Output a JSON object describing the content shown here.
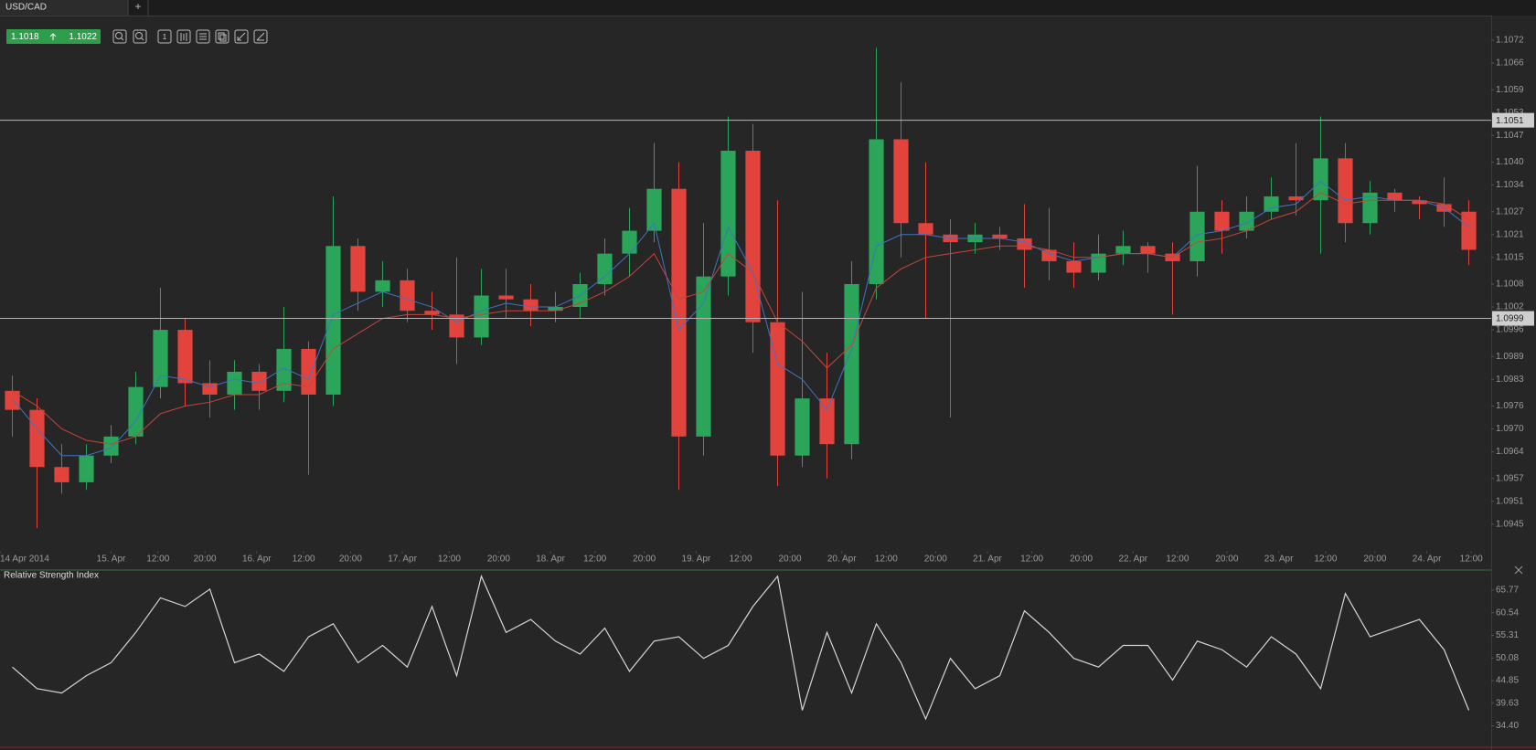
{
  "tab": {
    "title": "USD/CAD",
    "add": "+"
  },
  "toolbar": {
    "bid": "1.1018",
    "ask": "1.1022",
    "interval": "1"
  },
  "chart_data": [
    {
      "type": "candlestick",
      "up_color": "#2aa55a",
      "down_color": "#e2433d",
      "open": [
        1.098,
        1.0975,
        1.096,
        1.0956,
        1.0963,
        1.0968,
        1.0981,
        1.0996,
        1.0982,
        1.0979,
        1.0985,
        1.098,
        1.0991,
        1.0979,
        1.1018,
        1.1006,
        1.1009,
        1.1001,
        1.1,
        1.0994,
        1.1005,
        1.1004,
        1.1001,
        1.1002,
        1.1008,
        1.1016,
        1.1022,
        1.1033,
        1.0968,
        1.101,
        1.1043,
        1.0998,
        1.0963,
        1.0978,
        1.0966,
        1.1008,
        1.1046,
        1.1024,
        1.1021,
        1.1019,
        1.1021,
        1.102,
        1.1017,
        1.1014,
        1.1011,
        1.1016,
        1.1018,
        1.1016,
        1.1014,
        1.1027,
        1.1022,
        1.1027,
        1.1031,
        1.103,
        1.1041,
        1.1024,
        1.1032,
        1.103,
        1.1029,
        1.1027
      ],
      "high": [
        1.0984,
        1.0978,
        1.0966,
        1.0966,
        1.0971,
        1.0985,
        1.1007,
        1.0999,
        1.0988,
        1.0988,
        1.0987,
        1.1002,
        1.0993,
        1.1031,
        1.102,
        1.1014,
        1.1012,
        1.1006,
        1.1015,
        1.1012,
        1.1012,
        1.1008,
        1.1006,
        1.1011,
        1.102,
        1.1028,
        1.1045,
        1.104,
        1.1024,
        1.1052,
        1.105,
        1.103,
        1.1006,
        1.099,
        1.1014,
        1.107,
        1.1061,
        1.104,
        1.1025,
        1.1024,
        1.1023,
        1.1029,
        1.1028,
        1.1019,
        1.1021,
        1.1022,
        1.1019,
        1.1019,
        1.1039,
        1.103,
        1.1031,
        1.1036,
        1.1045,
        1.1052,
        1.1045,
        1.1035,
        1.1033,
        1.1031,
        1.1036,
        1.103
      ],
      "low": [
        1.0968,
        1.0944,
        1.0953,
        1.0954,
        1.0961,
        1.0966,
        1.0978,
        1.0976,
        1.0973,
        1.0975,
        1.0975,
        1.0977,
        1.0958,
        1.0976,
        1.1001,
        1.1002,
        1.0998,
        1.0996,
        1.0987,
        1.0992,
        1.0999,
        1.0997,
        1.0998,
        1.0999,
        1.1005,
        1.101,
        1.1019,
        1.0954,
        1.0963,
        1.1005,
        1.099,
        1.0955,
        1.096,
        1.0957,
        1.0962,
        1.1004,
        1.1015,
        1.0999,
        1.0973,
        1.1016,
        1.1017,
        1.1007,
        1.1009,
        1.1007,
        1.1009,
        1.1013,
        1.1011,
        1.1,
        1.101,
        1.1016,
        1.102,
        1.1025,
        1.1026,
        1.1016,
        1.1019,
        1.1021,
        1.1027,
        1.1025,
        1.1023,
        1.1013
      ],
      "close": [
        1.0975,
        1.096,
        1.0956,
        1.0963,
        1.0968,
        1.0981,
        1.0996,
        1.0982,
        1.0979,
        1.0985,
        1.098,
        1.0991,
        1.0979,
        1.1018,
        1.1006,
        1.1009,
        1.1001,
        1.1,
        1.0994,
        1.1005,
        1.1004,
        1.1001,
        1.1002,
        1.1008,
        1.1016,
        1.1022,
        1.1033,
        1.0968,
        1.101,
        1.1043,
        1.0998,
        1.0963,
        1.0978,
        1.0966,
        1.1008,
        1.1046,
        1.1024,
        1.1021,
        1.1019,
        1.1021,
        1.102,
        1.1017,
        1.1014,
        1.1011,
        1.1016,
        1.1018,
        1.1016,
        1.1014,
        1.1027,
        1.1022,
        1.1027,
        1.1031,
        1.103,
        1.1041,
        1.1024,
        1.1032,
        1.103,
        1.1029,
        1.1027,
        1.1017
      ],
      "series": [
        {
          "color": "#3f74c0",
          "values": [
            1.0978,
            1.097,
            1.0963,
            1.0963,
            1.0965,
            1.0972,
            1.0984,
            1.0983,
            1.0981,
            1.0983,
            1.0982,
            1.0986,
            1.0983,
            1.1,
            1.1003,
            1.1006,
            1.1004,
            1.1002,
            1.0998,
            1.1001,
            1.1003,
            1.1002,
            1.1002,
            1.1005,
            1.101,
            1.1016,
            1.1024,
            1.0996,
            1.1003,
            1.1023,
            1.1011,
            1.0987,
            1.0983,
            1.0975,
            1.0991,
            1.1018,
            1.1021,
            1.1021,
            1.102,
            1.102,
            1.102,
            1.1019,
            1.1016,
            1.1014,
            1.1015,
            1.1016,
            1.1016,
            1.1015,
            1.1021,
            1.1022,
            1.1024,
            1.1028,
            1.1029,
            1.1035,
            1.103,
            1.1031,
            1.103,
            1.103,
            1.1028,
            1.1023
          ]
        },
        {
          "color": "#c4463c",
          "values": [
            1.098,
            1.0976,
            1.097,
            1.0967,
            1.0966,
            1.0968,
            1.0974,
            1.0976,
            1.0977,
            1.0979,
            1.0979,
            1.0982,
            1.0981,
            1.0991,
            1.0995,
            1.0999,
            1.1,
            1.1,
            1.0999,
            1.1,
            1.1001,
            1.1001,
            1.1001,
            1.1003,
            1.1006,
            1.101,
            1.1016,
            1.1004,
            1.1006,
            1.1016,
            1.1011,
            1.0998,
            1.0993,
            1.0986,
            1.0992,
            1.1007,
            1.1012,
            1.1015,
            1.1016,
            1.1017,
            1.1018,
            1.1018,
            1.1017,
            1.1015,
            1.1015,
            1.1016,
            1.1016,
            1.1015,
            1.1019,
            1.102,
            1.1022,
            1.1025,
            1.1027,
            1.1032,
            1.1029,
            1.103,
            1.103,
            1.103,
            1.1029,
            1.1025
          ]
        }
      ],
      "hlines": [
        1.1051,
        1.0999
      ],
      "xlim": [
        -0.5,
        59.5
      ],
      "xticks": [
        {
          "value": -0.5,
          "label": "14 Apr 2014"
        },
        {
          "value": 4.0,
          "label": "15. Apr"
        },
        {
          "value": 5.9,
          "label": "12:00"
        },
        {
          "value": 7.8,
          "label": "20:00"
        },
        {
          "value": 9.9,
          "label": "16. Apr"
        },
        {
          "value": 11.8,
          "label": "12:00"
        },
        {
          "value": 13.7,
          "label": "20:00"
        },
        {
          "value": 15.8,
          "label": "17. Apr"
        },
        {
          "value": 17.7,
          "label": "12:00"
        },
        {
          "value": 19.7,
          "label": "20:00"
        },
        {
          "value": 21.8,
          "label": "18. Apr"
        },
        {
          "value": 23.6,
          "label": "12:00"
        },
        {
          "value": 25.6,
          "label": "20:00"
        },
        {
          "value": 27.7,
          "label": "19. Apr"
        },
        {
          "value": 29.5,
          "label": "12:00"
        },
        {
          "value": 31.5,
          "label": "20:00"
        },
        {
          "value": 33.6,
          "label": "20. Apr"
        },
        {
          "value": 35.4,
          "label": "12:00"
        },
        {
          "value": 37.4,
          "label": "20:00"
        },
        {
          "value": 39.5,
          "label": "21. Apr"
        },
        {
          "value": 41.3,
          "label": "12:00"
        },
        {
          "value": 43.3,
          "label": "20:00"
        },
        {
          "value": 45.4,
          "label": "22. Apr"
        },
        {
          "value": 47.2,
          "label": "12:00"
        },
        {
          "value": 49.2,
          "label": "20:00"
        },
        {
          "value": 51.3,
          "label": "23. Apr"
        },
        {
          "value": 53.2,
          "label": "12:00"
        },
        {
          "value": 55.2,
          "label": "20:00"
        },
        {
          "value": 57.3,
          "label": "24. Apr"
        },
        {
          "value": 59.1,
          "label": "12:00"
        }
      ],
      "ylim": [
        1.0938,
        1.1078
      ],
      "yticks": [
        1.1072,
        1.1066,
        1.1059,
        1.1053,
        1.1047,
        {
          "value": 1.104,
          "label": "1.1040"
        },
        1.1034,
        1.1027,
        1.1021,
        1.1015,
        1.1008,
        1.1002,
        1.0996,
        1.0989,
        1.0983,
        1.0976,
        {
          "value": 1.097,
          "label": "1.0970"
        },
        1.0964,
        1.0957,
        1.0951,
        1.0945
      ]
    },
    {
      "type": "line",
      "title": "Relative Strength Index",
      "color": "#d6d6d6",
      "values": [
        48,
        43,
        42,
        46,
        49,
        56,
        64,
        62,
        66,
        49,
        51,
        47,
        55,
        58,
        49,
        53,
        48,
        62,
        46,
        69,
        56,
        59,
        54,
        51,
        57,
        47,
        54,
        55,
        50,
        53,
        62,
        69,
        38,
        56,
        42,
        58,
        49,
        36,
        50,
        43,
        46,
        61,
        56,
        50,
        48,
        53,
        53,
        45,
        54,
        52,
        48,
        55,
        51,
        43,
        65,
        55,
        57,
        59,
        52,
        38
      ],
      "xlim": [
        -0.5,
        59.5
      ],
      "ylim": [
        30.3,
        70.0
      ],
      "yticks": [
        65.77,
        60.54,
        55.31,
        50.08,
        44.85,
        39.63,
        {
          "value": 34.4,
          "label": "34.40"
        }
      ]
    }
  ]
}
